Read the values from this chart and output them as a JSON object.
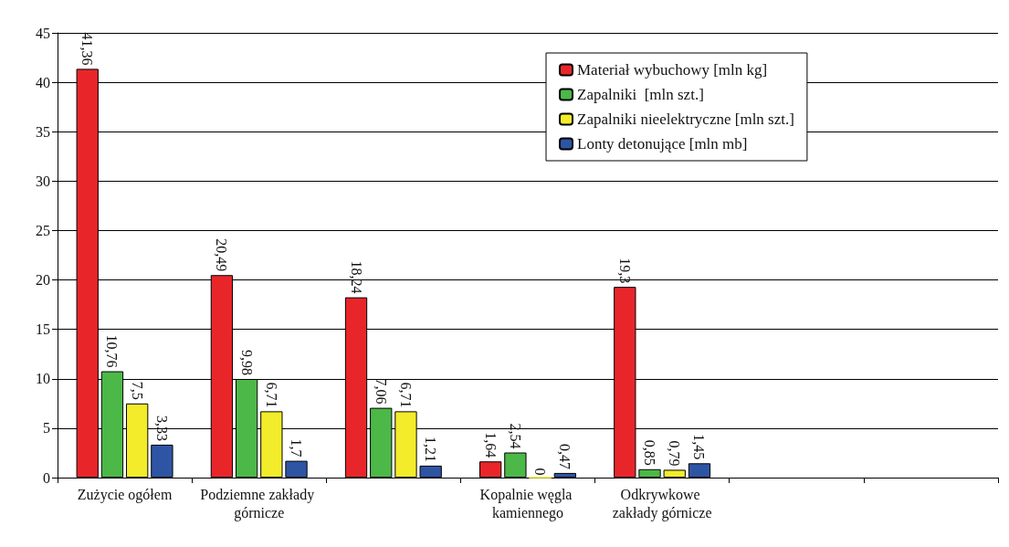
{
  "chart_data": {
    "type": "bar",
    "categories": [
      "Zużycie ogółem",
      "Podziemne zakłady górnicze",
      null,
      "Kopalnie węgla kamiennego",
      "Odkrywkowe zakłady górnicze",
      null,
      null
    ],
    "series": [
      {
        "name": "Materiał wybuchowy [mln kg]",
        "color": "#e8262a",
        "values": [
          41.36,
          20.49,
          18.24,
          1.64,
          19.3,
          null,
          null
        ],
        "value_labels": [
          "41,36",
          "20,49",
          "18,24",
          "1,64",
          "19,3",
          null,
          null
        ]
      },
      {
        "name": "Zapalniki  [mln szt.]",
        "color": "#4cb848",
        "values": [
          10.76,
          9.98,
          7.06,
          2.54,
          0.85,
          null,
          null
        ],
        "value_labels": [
          "10,76",
          "9,98",
          "7,06",
          "2,54",
          "0,85",
          null,
          null
        ]
      },
      {
        "name": "Zapalniki nieelektryczne [mln szt.]",
        "color": "#f2ec2a",
        "values": [
          7.5,
          6.71,
          6.71,
          0,
          0.79,
          null,
          null
        ],
        "value_labels": [
          "7,5",
          "6,71",
          "6,71",
          "0",
          "0,79",
          null,
          null
        ]
      },
      {
        "name": "Lonty detonujące [mln mb]",
        "color": "#2e55a4",
        "values": [
          3.33,
          1.7,
          1.21,
          0.47,
          1.45,
          null,
          null
        ],
        "value_labels": [
          "3,33",
          "1,7",
          "1,21",
          "0,47",
          "1,45",
          null,
          null
        ]
      }
    ],
    "ylim": [
      0,
      45
    ],
    "yticks": [
      0,
      5,
      10,
      15,
      20,
      25,
      30,
      35,
      40,
      45
    ],
    "grid": "y",
    "legend": "top right"
  }
}
